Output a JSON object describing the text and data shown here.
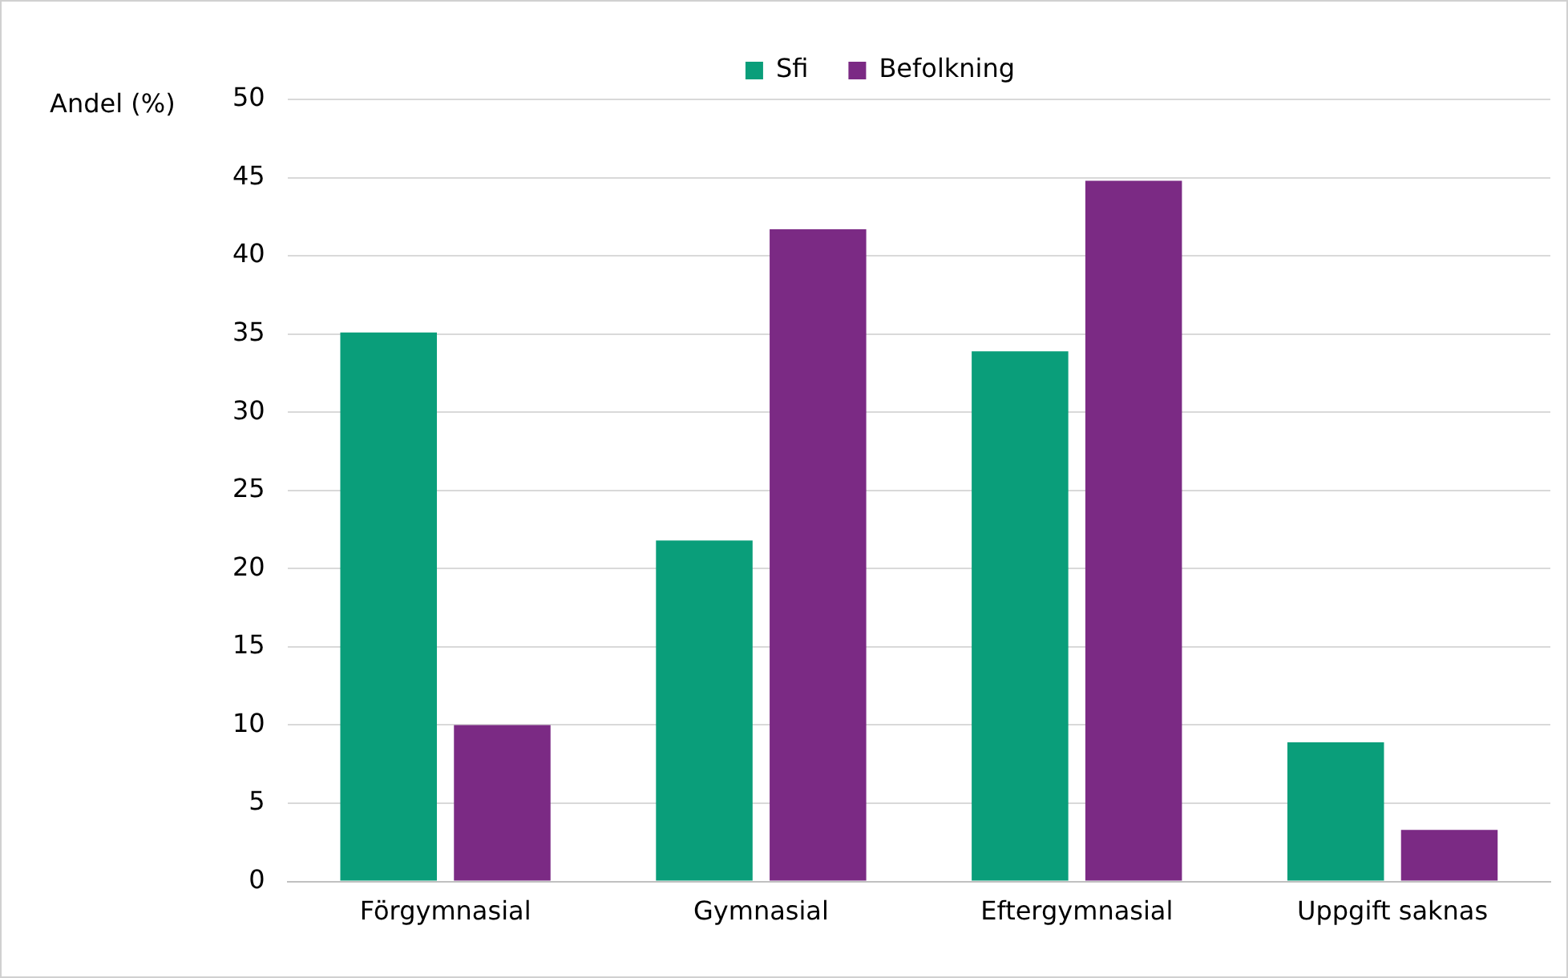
{
  "chart_data": {
    "type": "bar",
    "ylabel": "Andel (%)",
    "categories": [
      "Förgymnasial",
      "Gymnasial",
      "Eftergymnasial",
      "Uppgift saknas"
    ],
    "series": [
      {
        "name": "Sfi",
        "color": "#0a9e7a",
        "values": [
          35.1,
          21.8,
          33.9,
          8.9
        ]
      },
      {
        "name": "Befolkning",
        "color": "#7b2a84",
        "values": [
          10.0,
          41.7,
          44.8,
          3.3
        ]
      }
    ],
    "ylim": [
      0,
      50
    ],
    "yticks": [
      0,
      5,
      10,
      15,
      20,
      25,
      30,
      35,
      40,
      45,
      50
    ],
    "grid": "y",
    "legend": "top"
  }
}
